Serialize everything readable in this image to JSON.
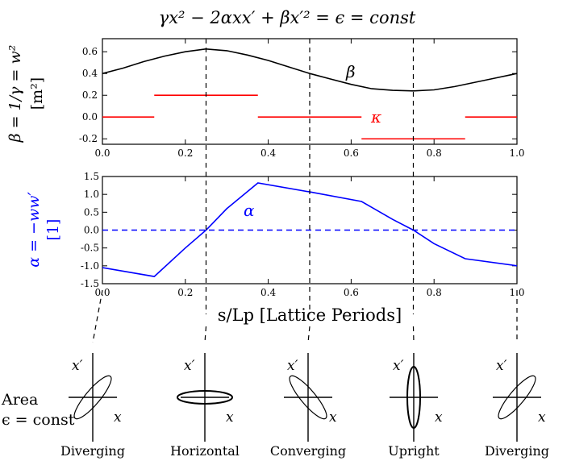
{
  "figure": {
    "title": "γx² − 2αxx′ + βx′² = ϵ = const",
    "xlabel": "s/Lp [Lattice Periods]",
    "area_label_line1": "Area",
    "area_label_line2": "ϵ = const",
    "dashed_guides_at": [
      0.0,
      0.25,
      0.5,
      0.75,
      1.0
    ]
  },
  "chart_data": [
    {
      "type": "line",
      "ylabel": "β = 1/γ = w²",
      "yunit": "[m²]",
      "xlim": [
        0.0,
        1.0
      ],
      "ylim": [
        -0.25,
        0.72
      ],
      "xticks": [
        "0.0",
        "0.2",
        "0.4",
        "0.6",
        "0.8",
        "1.0"
      ],
      "yticks": [
        "-0.2",
        "0.0",
        "0.2",
        "0.4",
        "0.6"
      ],
      "series": [
        {
          "name": "β",
          "color": "#000000",
          "x": [
            0.0,
            0.05,
            0.1,
            0.15,
            0.2,
            0.25,
            0.3,
            0.35,
            0.4,
            0.45,
            0.5,
            0.55,
            0.6,
            0.65,
            0.7,
            0.75,
            0.8,
            0.85,
            0.9,
            0.95,
            1.0
          ],
          "y": [
            0.4,
            0.45,
            0.51,
            0.56,
            0.6,
            0.625,
            0.61,
            0.57,
            0.52,
            0.46,
            0.4,
            0.35,
            0.3,
            0.26,
            0.245,
            0.24,
            0.25,
            0.28,
            0.32,
            0.36,
            0.4
          ]
        },
        {
          "name": "κ",
          "color": "#ff0000",
          "segments": [
            {
              "x": [
                0.0,
                0.125
              ],
              "y": 0.0
            },
            {
              "x": [
                0.125,
                0.375
              ],
              "y": 0.2
            },
            {
              "x": [
                0.375,
                0.625
              ],
              "y": 0.0
            },
            {
              "x": [
                0.625,
                0.875
              ],
              "y": -0.2
            },
            {
              "x": [
                0.875,
                1.0
              ],
              "y": 0.0
            }
          ]
        }
      ]
    },
    {
      "type": "line",
      "ylabel": "α = −ww′",
      "yunit": "[1]",
      "xlim": [
        0.0,
        1.0
      ],
      "ylim": [
        -1.5,
        1.5
      ],
      "xticks": [
        "0.0",
        "0.2",
        "0.4",
        "0.6",
        "0.8",
        "1.0"
      ],
      "yticks": [
        "1.5",
        "1.0",
        "0.5",
        "0.0",
        "-0.5",
        "-1.0",
        "-1.5"
      ],
      "series": [
        {
          "name": "α",
          "color": "#0000ff",
          "x": [
            0.0,
            0.125,
            0.2,
            0.25,
            0.3,
            0.375,
            0.5,
            0.625,
            0.7,
            0.75,
            0.8,
            0.875,
            1.0
          ],
          "y": [
            -1.05,
            -1.3,
            -0.5,
            0.0,
            0.6,
            1.32,
            1.07,
            0.8,
            0.3,
            0.0,
            -0.38,
            -0.8,
            -1.0
          ]
        },
        {
          "name": "",
          "color": "#0000ff",
          "dashed": true,
          "x": [
            0.0,
            1.0
          ],
          "y": [
            0.0,
            0.0
          ]
        }
      ]
    }
  ],
  "ellipses": [
    {
      "x": 0.0,
      "name": "Diverging",
      "type": "diverging",
      "xp_label": "x′",
      "x_label": "x"
    },
    {
      "x": 0.25,
      "name": "Horizontal",
      "type": "horizontal",
      "xp_label": "x′",
      "x_label": "x"
    },
    {
      "x": 0.5,
      "name": "Converging",
      "type": "converging",
      "xp_label": "x′",
      "x_label": "x"
    },
    {
      "x": 0.75,
      "name": "Upright",
      "type": "upright",
      "xp_label": "x′",
      "x_label": "x"
    },
    {
      "x": 1.0,
      "name": "Diverging",
      "type": "diverging",
      "xp_label": "x′",
      "x_label": "x"
    }
  ]
}
